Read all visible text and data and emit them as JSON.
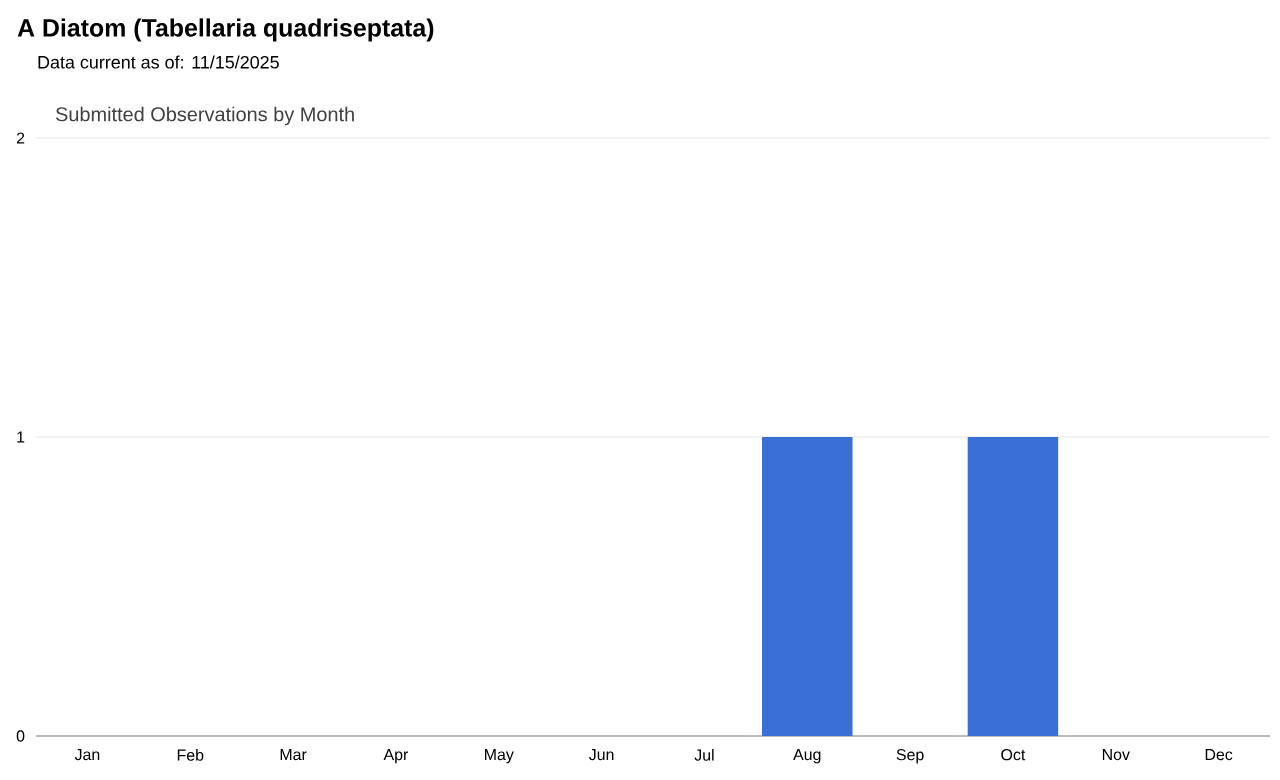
{
  "chart_data": {
    "type": "bar",
    "title": "A Diatom   (Tabellaria quadriseptata)",
    "subtitle": "Data current as of: 11/15/2025",
    "annotations": [
      "Submitted Observations by Month"
    ],
    "categories": [
      "Jan",
      "Feb",
      "Mar",
      "Apr",
      "May",
      "Jun",
      "Jul",
      "Aug",
      "Sep",
      "Oct",
      "Nov",
      "Dec"
    ],
    "values": [
      0,
      0,
      0,
      0,
      0,
      0,
      0,
      1,
      0,
      1,
      0,
      0
    ],
    "color": "#3a6fd8",
    "ylim": [
      0,
      2
    ],
    "yticks": [
      0,
      1,
      2
    ],
    "grid": "y"
  }
}
